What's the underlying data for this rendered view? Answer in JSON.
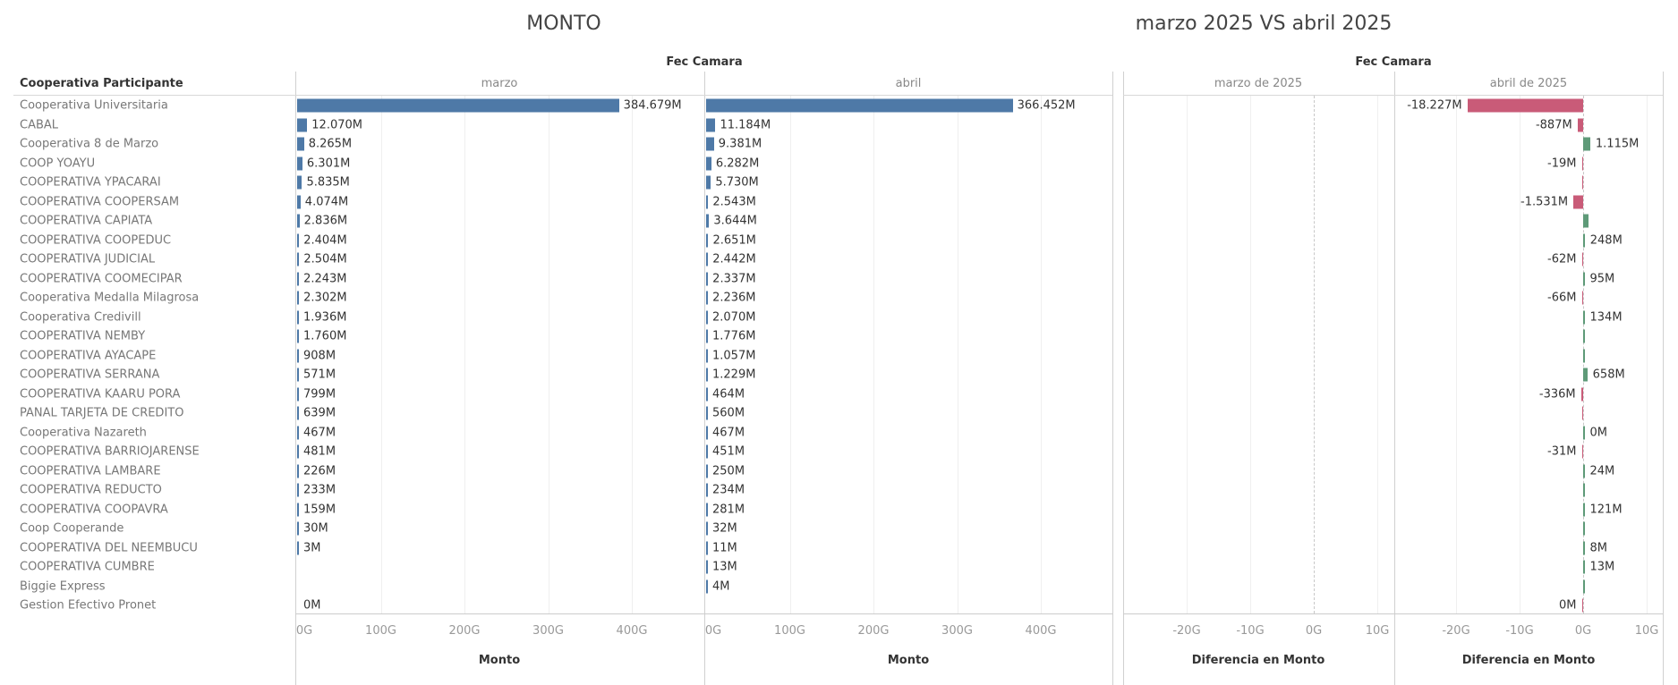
{
  "titles": {
    "left": "MONTO",
    "right": "marzo 2025 VS abril 2025"
  },
  "column_group_header": "Fec Camara",
  "row_header": "Cooperativa Participante",
  "colors": {
    "bar": "#4e79a7",
    "negative": "#c95b78",
    "positive": "#5e9a78"
  },
  "chart_data": [
    {
      "type": "bar",
      "title": "MONTO",
      "orientation": "horizontal",
      "panels": [
        "marzo",
        "abril"
      ],
      "xlabel": "Monto",
      "xlim_G": [
        0,
        480
      ],
      "ticks": [
        "0G",
        "100G",
        "200G",
        "300G",
        "400G"
      ],
      "tick_values_G": [
        0,
        100,
        200,
        300,
        400
      ],
      "categories": [
        "Cooperativa Universitaria",
        "CABAL",
        "Cooperativa 8 de Marzo",
        "COOP YOAYU",
        "COOPERATIVA YPACARAI",
        "COOPERATIVA COOPERSAM",
        "COOPERATIVA CAPIATA",
        "COOPERATIVA COOPEDUC",
        "COOPERATIVA JUDICIAL",
        "COOPERATIVA COOMECIPAR",
        "Cooperativa Medalla Milagrosa",
        "Cooperativa Credivill",
        "COOPERATIVA NEMBY",
        "COOPERATIVA AYACAPE",
        "COOPERATIVA SERRANA",
        "COOPERATIVA KAARU PORA",
        "PANAL TARJETA DE CREDITO",
        "Cooperativa Nazareth",
        "COOPERATIVA BARRIOJARENSE",
        "COOPERATIVA LAMBARE",
        "COOPERATIVA REDUCTO",
        "COOPERATIVA COOPAVRA",
        "Coop Cooperande",
        "COOPERATIVA DEL NEEMBUCU",
        "COOPERATIVA CUMBRE",
        "Biggie Express",
        "Gestion Efectivo Pronet"
      ],
      "series": [
        {
          "name": "marzo",
          "values_M": [
            384679,
            12070,
            8265,
            6301,
            5835,
            4074,
            2836,
            2404,
            2504,
            2243,
            2302,
            1936,
            1760,
            908,
            571,
            799,
            639,
            467,
            481,
            226,
            233,
            159,
            30,
            3,
            null,
            null,
            0
          ],
          "labels": [
            "384.679M",
            "12.070M",
            "8.265M",
            "6.301M",
            "5.835M",
            "4.074M",
            "2.836M",
            "2.404M",
            "2.504M",
            "2.243M",
            "2.302M",
            "1.936M",
            "1.760M",
            "908M",
            "571M",
            "799M",
            "639M",
            "467M",
            "481M",
            "226M",
            "233M",
            "159M",
            "30M",
            "3M",
            "",
            "",
            "0M"
          ]
        },
        {
          "name": "abril",
          "values_M": [
            366452,
            11184,
            9381,
            6282,
            5730,
            2543,
            3644,
            2651,
            2442,
            2337,
            2236,
            2070,
            1776,
            1057,
            1229,
            464,
            560,
            467,
            451,
            250,
            234,
            281,
            32,
            11,
            13,
            4,
            null
          ],
          "labels": [
            "366.452M",
            "11.184M",
            "9.381M",
            "6.282M",
            "5.730M",
            "2.543M",
            "3.644M",
            "2.651M",
            "2.442M",
            "2.337M",
            "2.236M",
            "2.070M",
            "1.776M",
            "1.057M",
            "1.229M",
            "464M",
            "560M",
            "467M",
            "451M",
            "250M",
            "234M",
            "281M",
            "32M",
            "11M",
            "13M",
            "4M",
            ""
          ]
        }
      ]
    },
    {
      "type": "bar",
      "title": "marzo 2025 VS abril 2025",
      "orientation": "horizontal",
      "panels": [
        "marzo de 2025",
        "abril de 2025"
      ],
      "xlabel": "Diferencia en Monto",
      "xlim_G": [
        -27,
        12
      ],
      "ticks": [
        "-20G",
        "-10G",
        "0G",
        "10G"
      ],
      "tick_values_G": [
        -20,
        -10,
        0,
        10
      ],
      "series": [
        {
          "name": "marzo de 2025",
          "values_M": [],
          "labels": []
        },
        {
          "name": "abril de 2025",
          "values_M": [
            -18227,
            -887,
            1115,
            -19,
            -105,
            -1531,
            808,
            248,
            -62,
            95,
            -66,
            134,
            16,
            149,
            658,
            -336,
            -79,
            0,
            -31,
            24,
            1,
            121,
            2,
            8,
            13,
            4,
            0
          ],
          "labels": [
            "-18.227M",
            "-887M",
            "1.115M",
            "-19M",
            "",
            "-1.531M",
            "",
            "248M",
            "-62M",
            "95M",
            "-66M",
            "134M",
            "",
            "",
            "658M",
            "-336M",
            "",
            "0M",
            "-31M",
            "24M",
            "",
            "121M",
            "",
            "8M",
            "13M",
            "",
            "0M"
          ]
        }
      ]
    }
  ]
}
